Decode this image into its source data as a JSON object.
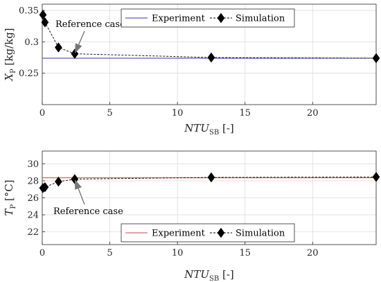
{
  "chart_data": [
    {
      "type": "line",
      "xlabel_main": "NTU",
      "xlabel_sub": "SB",
      "xlabel_unit": "[-]",
      "ylabel_main": "X",
      "ylabel_sub": "P",
      "ylabel_unit": "[kg/kg]",
      "xlim": [
        0,
        24.7
      ],
      "ylim": [
        0.2,
        0.36
      ],
      "xticks": [
        "0",
        "5",
        "10",
        "15",
        "20"
      ],
      "xtick_values": [
        0,
        5,
        10,
        15,
        20
      ],
      "yticks": [
        "0.25",
        "0.3",
        "0.35"
      ],
      "ytick_values": [
        0.25,
        0.3,
        0.35
      ],
      "grid": true,
      "legend_position": "top",
      "series": [
        {
          "name": "Experiment",
          "kind": "reference-line",
          "color": "#3333aa",
          "y": 0.274
        },
        {
          "name": "Simulation",
          "kind": "markers-dashed",
          "color": "#000000",
          "x": [
            0.05,
            0.2,
            1.2,
            2.4,
            12.5,
            24.7
          ],
          "y": [
            0.343,
            0.331,
            0.291,
            0.281,
            0.275,
            0.274
          ]
        }
      ],
      "annotation": {
        "text": "Reference case",
        "x": 2.4,
        "y": 0.281
      }
    },
    {
      "type": "line",
      "xlabel_main": "NTU",
      "xlabel_sub": "SB",
      "xlabel_unit": "[-]",
      "ylabel_main": "T",
      "ylabel_sub": "P",
      "ylabel_unit": "[°C]",
      "xlim": [
        0,
        24.7
      ],
      "ylim": [
        20.5,
        31.5
      ],
      "xticks": [
        "0",
        "5",
        "10",
        "15",
        "20"
      ],
      "xtick_values": [
        0,
        5,
        10,
        15,
        20
      ],
      "yticks": [
        "22",
        "24",
        "26",
        "28",
        "30"
      ],
      "ytick_values": [
        22,
        24,
        26,
        28,
        30
      ],
      "grid": true,
      "legend_position": "bottom",
      "series": [
        {
          "name": "Experiment",
          "kind": "reference-line",
          "color": "#cc4444",
          "y": 28.35
        },
        {
          "name": "Simulation",
          "kind": "markers-dashed",
          "color": "#000000",
          "x": [
            0.05,
            0.2,
            1.2,
            2.4,
            12.5,
            24.7
          ],
          "y": [
            27.15,
            27.25,
            27.9,
            28.2,
            28.4,
            28.45
          ]
        }
      ],
      "annotation": {
        "text": "Reference case",
        "x": 2.4,
        "y": 28.2
      }
    }
  ]
}
